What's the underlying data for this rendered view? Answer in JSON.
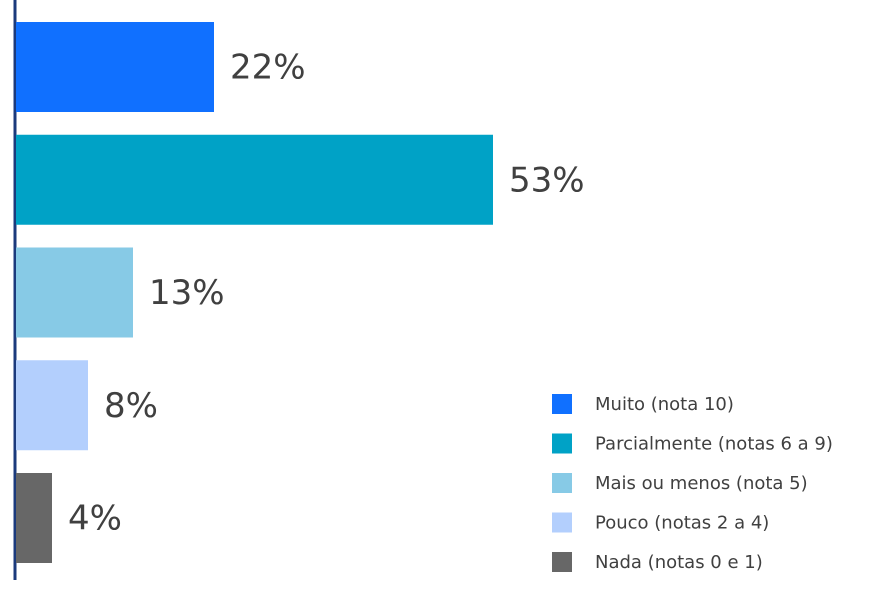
{
  "chart_data": {
    "type": "bar",
    "orientation": "horizontal",
    "categories": [
      "Muito (nota 10)",
      "Parcialmente (notas 6 a 9)",
      "Mais ou menos (nota 5)",
      "Pouco (notas 2 a 4)",
      "Nada (notas 0 e 1)"
    ],
    "values": [
      22,
      53,
      13,
      8,
      4
    ],
    "value_labels": [
      "22%",
      "53%",
      "13%",
      "8%",
      "4%"
    ],
    "colors": [
      "#1070ff",
      "#00a2c6",
      "#87cae6",
      "#b3cffd",
      "#676767"
    ],
    "xlim": [
      0,
      60
    ],
    "legend": "bottom-right"
  }
}
